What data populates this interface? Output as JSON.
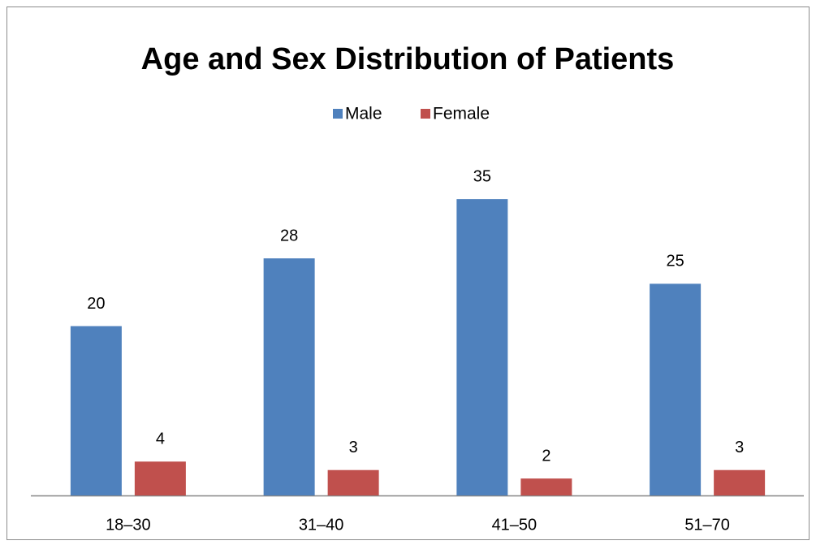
{
  "chart_data": {
    "type": "bar",
    "title": "Age and Sex Distribution of Patients",
    "categories": [
      "18–30",
      "31–40",
      "41–50",
      "51–70"
    ],
    "series": [
      {
        "name": "Male",
        "color": "#4f81bd",
        "values": [
          20,
          28,
          35,
          25
        ]
      },
      {
        "name": "Female",
        "color": "#c0504d",
        "values": [
          4,
          3,
          2,
          3
        ]
      }
    ],
    "ylim": [
      0,
      40
    ],
    "legend": "top"
  }
}
